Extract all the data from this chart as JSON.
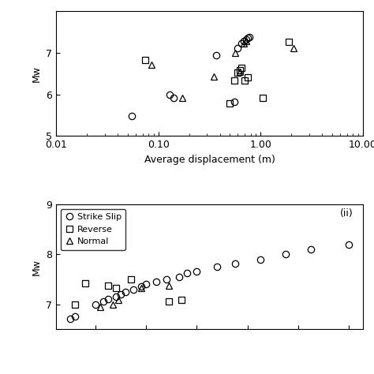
{
  "top_plot": {
    "xlabel": "Average displacement (m)",
    "ylabel": "Mw",
    "xlim": [
      0.01,
      10.0
    ],
    "ylim": [
      5.0,
      8.0
    ],
    "yticks": [
      5,
      6,
      7
    ],
    "xtick_labels": [
      "0.01",
      "0.10",
      "1.00",
      "10.00"
    ],
    "strike_slip": {
      "x": [
        0.055,
        0.13,
        0.14,
        0.37,
        0.55,
        0.6,
        0.65,
        0.68,
        0.72,
        0.75,
        0.78
      ],
      "y": [
        5.48,
        6.0,
        5.92,
        6.95,
        5.82,
        7.12,
        7.22,
        7.28,
        7.32,
        7.35,
        7.38
      ]
    },
    "reverse": {
      "x": [
        0.075,
        0.5,
        0.55,
        0.6,
        0.63,
        0.65,
        0.7,
        0.75,
        1.05,
        1.9
      ],
      "y": [
        6.82,
        5.78,
        6.33,
        6.52,
        6.58,
        6.63,
        6.33,
        6.4,
        5.92,
        7.27
      ]
    },
    "normal": {
      "x": [
        0.085,
        0.17,
        0.35,
        0.56,
        0.63,
        0.68,
        0.72,
        2.1
      ],
      "y": [
        6.72,
        5.92,
        6.42,
        7.0,
        6.55,
        7.22,
        7.28,
        7.12
      ]
    }
  },
  "bottom_plot": {
    "ylabel": "Mw",
    "label": "(ii)",
    "ylim": [
      6.5,
      9.0
    ],
    "yticks": [
      7,
      8,
      9
    ],
    "legend_entries": [
      "Strike Slip",
      "Reverse",
      "Normal"
    ],
    "strike_slip": {
      "x": [
        100,
        120,
        200,
        230,
        250,
        280,
        300,
        320,
        350,
        380,
        400,
        440,
        480,
        530,
        560,
        600,
        680,
        750,
        850,
        950,
        1050,
        1200
      ],
      "y": [
        6.7,
        6.75,
        7.0,
        7.05,
        7.1,
        7.15,
        7.2,
        7.25,
        7.3,
        7.35,
        7.4,
        7.45,
        7.5,
        7.55,
        7.62,
        7.65,
        7.75,
        7.82,
        7.9,
        8.0,
        8.1,
        8.2
      ]
    },
    "reverse": {
      "x": [
        120,
        160,
        250,
        280,
        340,
        490,
        540
      ],
      "y": [
        7.0,
        7.42,
        7.38,
        7.32,
        7.5,
        7.05,
        7.08
      ]
    },
    "normal": {
      "x": [
        220,
        270,
        290,
        380,
        490
      ],
      "y": [
        6.95,
        7.0,
        7.08,
        7.32,
        7.38
      ]
    }
  },
  "marker_size": 6,
  "linewidth": 0.9,
  "bg_color": "#ffffff"
}
